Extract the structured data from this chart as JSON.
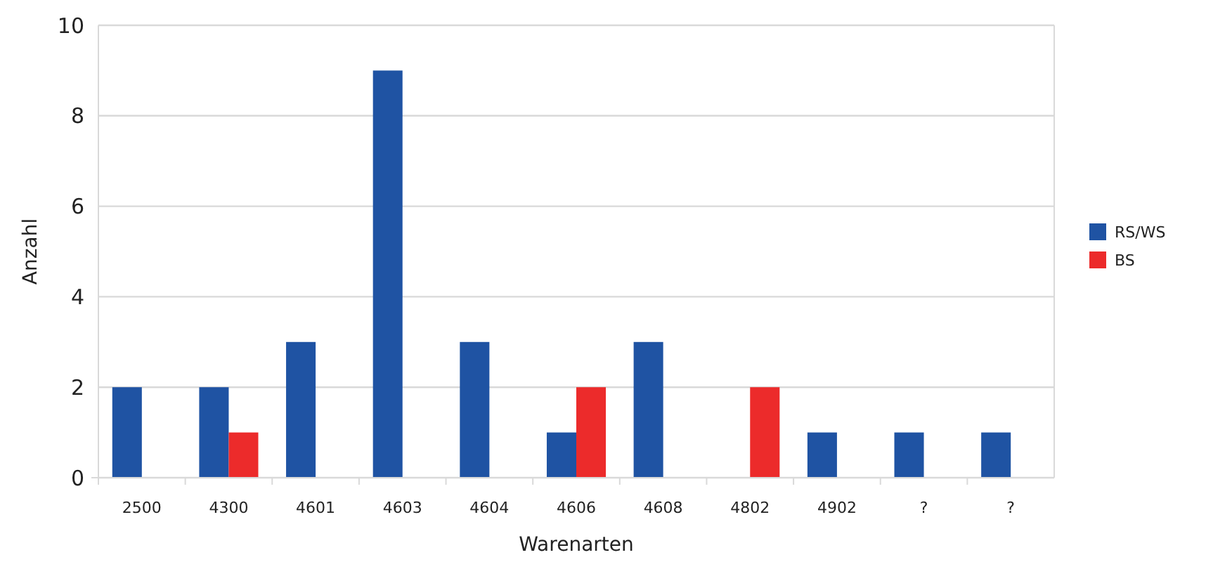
{
  "chart_data": {
    "type": "bar",
    "xlabel": "Warenarten",
    "ylabel": "Anzahl",
    "categories": [
      "2500",
      "4300",
      "4601",
      "4603",
      "4604",
      "4606",
      "4608",
      "4802",
      "4902",
      "?",
      "?"
    ],
    "series": [
      {
        "name": "RS/WS",
        "color": "#1f53a3",
        "values": [
          2,
          2,
          3,
          9,
          3,
          1,
          3,
          null,
          1,
          1,
          1
        ]
      },
      {
        "name": "BS",
        "color": "#ec2b2b",
        "values": [
          null,
          1,
          null,
          null,
          null,
          2,
          null,
          2,
          null,
          null,
          null
        ]
      }
    ],
    "ylim": [
      0,
      10
    ],
    "yticks": [
      0,
      2,
      4,
      6,
      8,
      10
    ],
    "grid": "y",
    "legend": "right"
  }
}
